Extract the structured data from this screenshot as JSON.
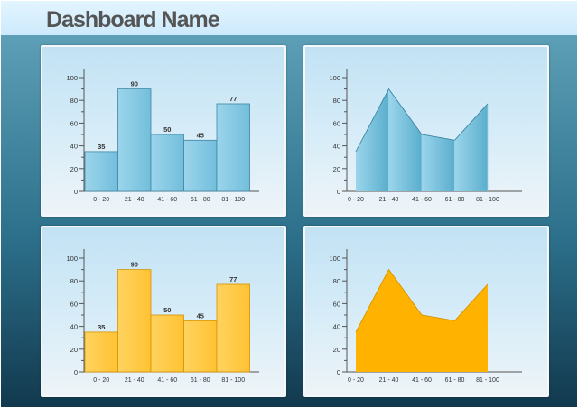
{
  "header": {
    "title": "Dashboard Name"
  },
  "colors": {
    "blue_fill": "#73bedb",
    "blue_stroke": "#3f86a4",
    "orange_fill": "#ffc233",
    "orange_stroke": "#d69200",
    "axis": "#555555"
  },
  "chart_data": [
    {
      "id": "chart-1",
      "type": "bar",
      "color": "blue",
      "categories": [
        "0 - 20",
        "21 - 40",
        "41 - 60",
        "61 - 80",
        "81 - 100"
      ],
      "values": [
        35,
        90,
        50,
        45,
        77
      ],
      "data_labels": [
        "35",
        "90",
        "50",
        "45",
        "77"
      ],
      "yticks": [
        "0",
        "20",
        "40",
        "60",
        "80",
        "100"
      ],
      "ylim": [
        0,
        100
      ],
      "title": "",
      "xlabel": "",
      "ylabel": ""
    },
    {
      "id": "chart-2",
      "type": "area",
      "color": "blue",
      "categories": [
        "0 - 20",
        "21 - 40",
        "41 - 60",
        "61 - 80",
        "81 - 100"
      ],
      "values": [
        35,
        90,
        50,
        45,
        77
      ],
      "yticks": [
        "0",
        "20",
        "40",
        "60",
        "80",
        "100"
      ],
      "ylim": [
        0,
        100
      ],
      "title": "",
      "xlabel": "",
      "ylabel": ""
    },
    {
      "id": "chart-3",
      "type": "bar",
      "color": "orange",
      "categories": [
        "0 - 20",
        "21 - 40",
        "41 - 60",
        "61 - 80",
        "81 - 100"
      ],
      "values": [
        35,
        90,
        50,
        45,
        77
      ],
      "data_labels": [
        "35",
        "90",
        "50",
        "45",
        "77"
      ],
      "yticks": [
        "0",
        "20",
        "40",
        "60",
        "80",
        "100"
      ],
      "ylim": [
        0,
        100
      ],
      "title": "",
      "xlabel": "",
      "ylabel": ""
    },
    {
      "id": "chart-4",
      "type": "area",
      "color": "orange",
      "categories": [
        "0 - 20",
        "21 - 40",
        "41 - 60",
        "61 - 80",
        "81 - 100"
      ],
      "values": [
        35,
        90,
        50,
        45,
        77
      ],
      "yticks": [
        "0",
        "20",
        "40",
        "60",
        "80",
        "100"
      ],
      "ylim": [
        0,
        100
      ],
      "title": "",
      "xlabel": "",
      "ylabel": ""
    }
  ]
}
